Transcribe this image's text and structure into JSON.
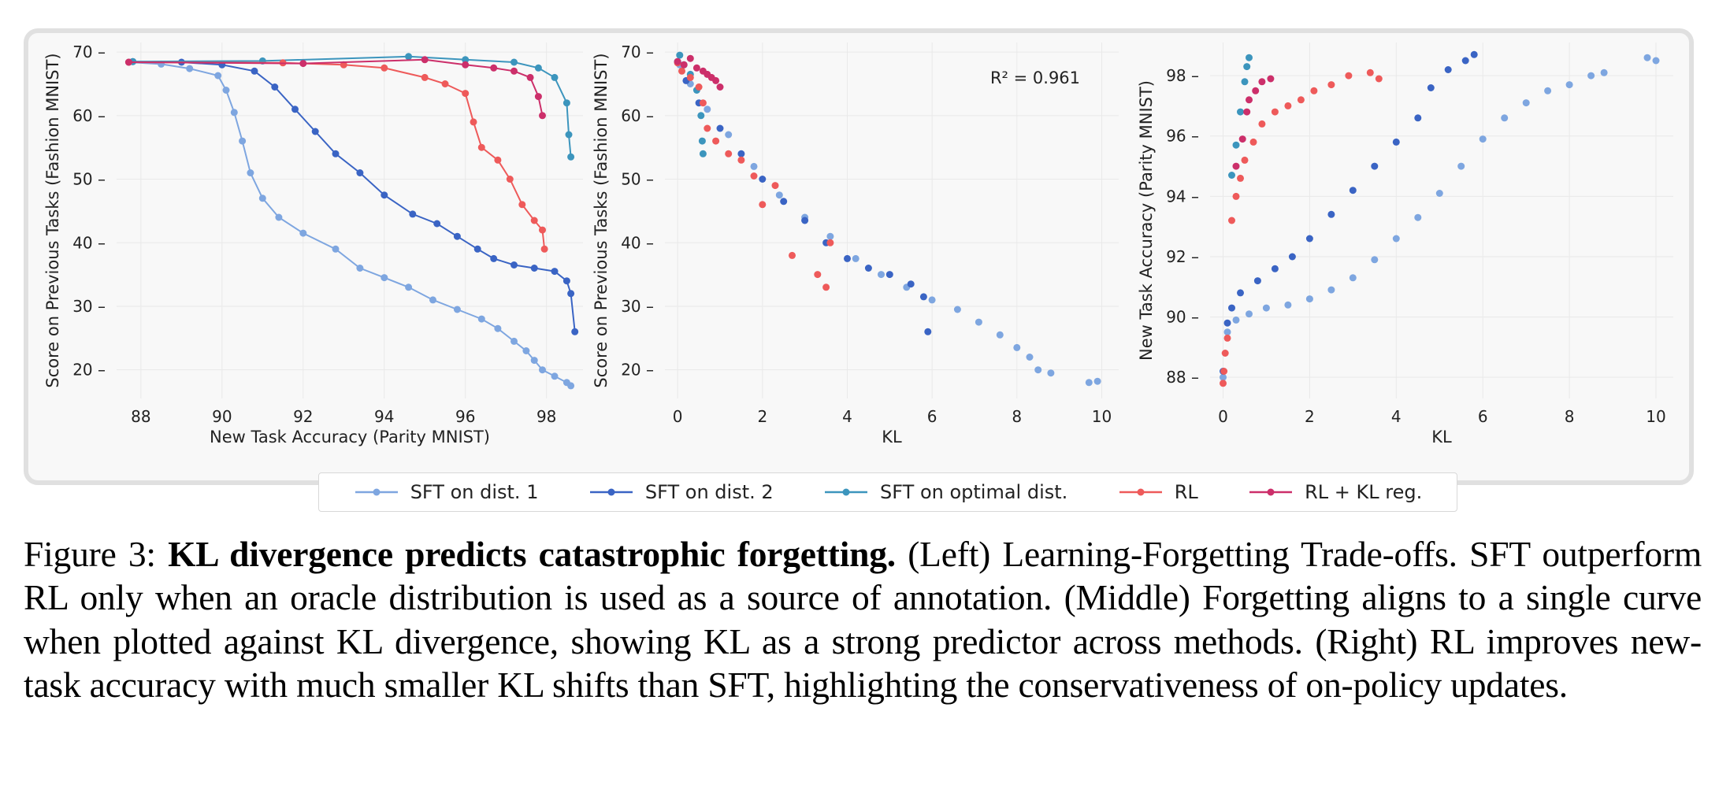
{
  "colors": {
    "sft1": "#7ea6e0",
    "sft2": "#3a64c4",
    "sft_opt": "#3c95bd",
    "rl": "#ee5a5a",
    "rl_kl": "#cc2f6a"
  },
  "legend": [
    {
      "label": "SFT on dist. 1",
      "key": "sft1"
    },
    {
      "label": "SFT on dist. 2",
      "key": "sft2"
    },
    {
      "label": "SFT on optimal dist.",
      "key": "sft_opt"
    },
    {
      "label": "RL",
      "key": "rl"
    },
    {
      "label": "RL + KL reg.",
      "key": "rl_kl"
    }
  ],
  "chart_data": [
    {
      "type": "line",
      "xlabel": "New Task Accuracy (Parity MNIST)",
      "ylabel": "Score on Previous Tasks (Fashion MNIST)",
      "xlim": [
        87.4,
        98.9
      ],
      "ylim": [
        15.5,
        71.5
      ],
      "xticks": [
        88,
        90,
        92,
        94,
        96,
        98
      ],
      "yticks": [
        20,
        30,
        40,
        50,
        60,
        70
      ],
      "grid": true,
      "series": [
        {
          "name": "SFT on dist. 1",
          "key": "sft1",
          "points": [
            [
              87.7,
              68.4
            ],
            [
              88.5,
              68.1
            ],
            [
              89.2,
              67.4
            ],
            [
              89.9,
              66.3
            ],
            [
              90.1,
              64.0
            ],
            [
              90.3,
              60.5
            ],
            [
              90.5,
              56.0
            ],
            [
              90.7,
              51.0
            ],
            [
              91.0,
              47.0
            ],
            [
              91.4,
              44.0
            ],
            [
              92.0,
              41.5
            ],
            [
              92.8,
              39.0
            ],
            [
              93.4,
              36.0
            ],
            [
              94.0,
              34.5
            ],
            [
              94.6,
              33.0
            ],
            [
              95.2,
              31.0
            ],
            [
              95.8,
              29.5
            ],
            [
              96.4,
              28.0
            ],
            [
              96.8,
              26.5
            ],
            [
              97.2,
              24.5
            ],
            [
              97.5,
              23.0
            ],
            [
              97.7,
              21.5
            ],
            [
              97.9,
              20.0
            ],
            [
              98.2,
              19.0
            ],
            [
              98.5,
              18.0
            ],
            [
              98.6,
              17.5
            ]
          ]
        },
        {
          "name": "SFT on dist. 2",
          "key": "sft2",
          "points": [
            [
              87.8,
              68.5
            ],
            [
              89.0,
              68.4
            ],
            [
              90.0,
              68.0
            ],
            [
              90.8,
              67.0
            ],
            [
              91.3,
              64.5
            ],
            [
              91.8,
              61.0
            ],
            [
              92.3,
              57.5
            ],
            [
              92.8,
              54.0
            ],
            [
              93.4,
              51.0
            ],
            [
              94.0,
              47.5
            ],
            [
              94.7,
              44.5
            ],
            [
              95.3,
              43.0
            ],
            [
              95.8,
              41.0
            ],
            [
              96.3,
              39.0
            ],
            [
              96.7,
              37.5
            ],
            [
              97.2,
              36.5
            ],
            [
              97.7,
              36.0
            ],
            [
              98.2,
              35.5
            ],
            [
              98.5,
              34.0
            ],
            [
              98.6,
              32.0
            ],
            [
              98.7,
              26.0
            ]
          ]
        },
        {
          "name": "SFT on optimal dist.",
          "key": "sft_opt",
          "points": [
            [
              87.8,
              68.5
            ],
            [
              91.0,
              68.6
            ],
            [
              94.6,
              69.3
            ],
            [
              96.0,
              68.8
            ],
            [
              97.2,
              68.4
            ],
            [
              97.8,
              67.5
            ],
            [
              98.2,
              66.0
            ],
            [
              98.5,
              62.0
            ],
            [
              98.55,
              57.0
            ],
            [
              98.6,
              53.5
            ]
          ]
        },
        {
          "name": "RL",
          "key": "rl",
          "points": [
            [
              87.7,
              68.4
            ],
            [
              91.5,
              68.3
            ],
            [
              93.0,
              68.0
            ],
            [
              94.0,
              67.5
            ],
            [
              95.0,
              66.0
            ],
            [
              95.5,
              65.0
            ],
            [
              96.0,
              63.5
            ],
            [
              96.2,
              59.0
            ],
            [
              96.4,
              55.0
            ],
            [
              96.8,
              53.0
            ],
            [
              97.1,
              50.0
            ],
            [
              97.4,
              46.0
            ],
            [
              97.7,
              43.5
            ],
            [
              97.9,
              42.0
            ],
            [
              97.95,
              39.0
            ]
          ]
        },
        {
          "name": "RL + KL reg.",
          "key": "rl_kl",
          "points": [
            [
              87.7,
              68.4
            ],
            [
              92.0,
              68.2
            ],
            [
              95.0,
              68.8
            ],
            [
              96.0,
              68.0
            ],
            [
              96.7,
              67.5
            ],
            [
              97.2,
              67.0
            ],
            [
              97.6,
              66.0
            ],
            [
              97.8,
              63.0
            ],
            [
              97.9,
              60.0
            ]
          ]
        }
      ]
    },
    {
      "type": "scatter",
      "xlabel": "KL",
      "ylabel": "Score on Previous Tasks (Fashion MNIST)",
      "xlim": [
        -0.3,
        10.4
      ],
      "ylim": [
        15.5,
        71.5
      ],
      "xticks": [
        0,
        2,
        4,
        6,
        8,
        10
      ],
      "yticks": [
        20,
        30,
        40,
        50,
        60,
        70
      ],
      "grid": true,
      "annotation": "R² = 0.961",
      "series": [
        {
          "name": "SFT on dist. 1",
          "key": "sft1",
          "points": [
            [
              0.05,
              68.0
            ],
            [
              0.3,
              65.0
            ],
            [
              0.7,
              61.0
            ],
            [
              1.2,
              57.0
            ],
            [
              1.8,
              52.0
            ],
            [
              2.4,
              47.5
            ],
            [
              3.0,
              44.0
            ],
            [
              3.6,
              41.0
            ],
            [
              4.2,
              37.5
            ],
            [
              4.8,
              35.0
            ],
            [
              5.4,
              33.0
            ],
            [
              6.0,
              31.0
            ],
            [
              6.6,
              29.5
            ],
            [
              7.1,
              27.5
            ],
            [
              7.6,
              25.5
            ],
            [
              8.0,
              23.5
            ],
            [
              8.3,
              22.0
            ],
            [
              8.5,
              20.0
            ],
            [
              8.8,
              19.5
            ],
            [
              9.7,
              18.0
            ],
            [
              9.9,
              18.2
            ]
          ]
        },
        {
          "name": "SFT on dist. 2",
          "key": "sft2",
          "points": [
            [
              0.0,
              68.5
            ],
            [
              0.2,
              65.5
            ],
            [
              0.5,
              62.0
            ],
            [
              1.0,
              58.0
            ],
            [
              1.5,
              54.0
            ],
            [
              2.0,
              50.0
            ],
            [
              2.5,
              46.5
            ],
            [
              3.0,
              43.5
            ],
            [
              3.5,
              40.0
            ],
            [
              4.0,
              37.5
            ],
            [
              4.5,
              36.0
            ],
            [
              5.0,
              35.0
            ],
            [
              5.5,
              33.5
            ],
            [
              5.8,
              31.5
            ],
            [
              5.9,
              26.0
            ]
          ]
        },
        {
          "name": "SFT on optimal dist.",
          "key": "sft_opt",
          "points": [
            [
              0.05,
              69.5
            ],
            [
              0.15,
              68.0
            ],
            [
              0.3,
              66.5
            ],
            [
              0.45,
              64.0
            ],
            [
              0.55,
              60.0
            ],
            [
              0.58,
              56.0
            ],
            [
              0.6,
              54.0
            ]
          ]
        },
        {
          "name": "RL",
          "key": "rl",
          "points": [
            [
              0.0,
              68.3
            ],
            [
              0.1,
              67.0
            ],
            [
              0.3,
              66.0
            ],
            [
              0.5,
              64.5
            ],
            [
              0.6,
              62.0
            ],
            [
              0.7,
              58.0
            ],
            [
              0.9,
              56.0
            ],
            [
              1.2,
              54.0
            ],
            [
              1.5,
              53.0
            ],
            [
              1.8,
              50.5
            ],
            [
              2.0,
              46.0
            ],
            [
              2.3,
              49.0
            ],
            [
              2.7,
              38.0
            ],
            [
              3.3,
              35.0
            ],
            [
              3.5,
              33.0
            ],
            [
              3.6,
              40.0
            ]
          ]
        },
        {
          "name": "RL + KL reg.",
          "key": "rl_kl",
          "points": [
            [
              0.0,
              68.5
            ],
            [
              0.15,
              68.0
            ],
            [
              0.3,
              69.0
            ],
            [
              0.45,
              67.5
            ],
            [
              0.6,
              67.0
            ],
            [
              0.7,
              66.5
            ],
            [
              0.9,
              65.5
            ],
            [
              1.0,
              64.5
            ],
            [
              0.8,
              66.0
            ]
          ]
        }
      ]
    },
    {
      "type": "scatter",
      "xlabel": "KL",
      "ylabel": "New Task Accuracy (Parity MNIST)",
      "xlim": [
        -0.3,
        10.4
      ],
      "ylim": [
        87.3,
        99.1
      ],
      "xticks": [
        0,
        2,
        4,
        6,
        8,
        10
      ],
      "yticks": [
        88,
        90,
        92,
        94,
        96,
        98
      ],
      "grid": true,
      "series": [
        {
          "name": "SFT on dist. 1",
          "key": "sft1",
          "points": [
            [
              0.0,
              88.0
            ],
            [
              0.1,
              89.5
            ],
            [
              0.3,
              89.9
            ],
            [
              0.6,
              90.1
            ],
            [
              1.0,
              90.3
            ],
            [
              1.5,
              90.4
            ],
            [
              2.0,
              90.6
            ],
            [
              2.5,
              90.9
            ],
            [
              3.0,
              91.3
            ],
            [
              3.5,
              91.9
            ],
            [
              4.0,
              92.6
            ],
            [
              4.5,
              93.3
            ],
            [
              5.0,
              94.1
            ],
            [
              5.5,
              95.0
            ],
            [
              6.0,
              95.9
            ],
            [
              6.5,
              96.6
            ],
            [
              7.0,
              97.1
            ],
            [
              7.5,
              97.5
            ],
            [
              8.0,
              97.7
            ],
            [
              8.5,
              98.0
            ],
            [
              8.8,
              98.1
            ],
            [
              9.8,
              98.6
            ],
            [
              10.0,
              98.5
            ]
          ]
        },
        {
          "name": "SFT on dist. 2",
          "key": "sft2",
          "points": [
            [
              0.0,
              88.2
            ],
            [
              0.1,
              89.8
            ],
            [
              0.2,
              90.3
            ],
            [
              0.4,
              90.8
            ],
            [
              0.8,
              91.2
            ],
            [
              1.2,
              91.6
            ],
            [
              1.6,
              92.0
            ],
            [
              2.0,
              92.6
            ],
            [
              2.5,
              93.4
            ],
            [
              3.0,
              94.2
            ],
            [
              3.5,
              95.0
            ],
            [
              4.0,
              95.8
            ],
            [
              4.5,
              96.6
            ],
            [
              4.8,
              97.6
            ],
            [
              5.2,
              98.2
            ],
            [
              5.6,
              98.5
            ],
            [
              5.8,
              98.7
            ]
          ]
        },
        {
          "name": "SFT on optimal dist.",
          "key": "sft_opt",
          "points": [
            [
              0.2,
              94.7
            ],
            [
              0.3,
              95.7
            ],
            [
              0.4,
              96.8
            ],
            [
              0.5,
              97.8
            ],
            [
              0.55,
              98.3
            ],
            [
              0.6,
              98.6
            ]
          ]
        },
        {
          "name": "RL",
          "key": "rl",
          "points": [
            [
              0.0,
              87.8
            ],
            [
              0.02,
              88.2
            ],
            [
              0.05,
              88.8
            ],
            [
              0.1,
              89.3
            ],
            [
              0.2,
              93.2
            ],
            [
              0.3,
              94.0
            ],
            [
              0.4,
              94.6
            ],
            [
              0.5,
              95.2
            ],
            [
              0.7,
              95.8
            ],
            [
              0.9,
              96.4
            ],
            [
              1.2,
              96.8
            ],
            [
              1.5,
              97.0
            ],
            [
              1.8,
              97.2
            ],
            [
              2.1,
              97.5
            ],
            [
              2.5,
              97.7
            ],
            [
              2.9,
              98.0
            ],
            [
              3.4,
              98.1
            ],
            [
              3.6,
              97.9
            ]
          ]
        },
        {
          "name": "RL + KL reg.",
          "key": "rl_kl",
          "points": [
            [
              0.3,
              95.0
            ],
            [
              0.45,
              95.9
            ],
            [
              0.55,
              96.8
            ],
            [
              0.6,
              97.2
            ],
            [
              0.75,
              97.5
            ],
            [
              0.9,
              97.8
            ],
            [
              1.1,
              97.9
            ]
          ]
        }
      ]
    }
  ],
  "caption": {
    "prefix": "Figure 3: ",
    "bold": "KL divergence predicts catastrophic forgetting.",
    "rest": " (Left) Learning-Forgetting Trade-offs. SFT outperform RL only when an oracle distribution is used as a source of annotation.  (Middle) Forgetting aligns to a single curve when plotted against KL divergence, showing KL as a strong predictor across methods.  (Right) RL improves new-task accuracy with much smaller KL shifts than SFT, highlighting the conservativeness of on-policy updates."
  }
}
